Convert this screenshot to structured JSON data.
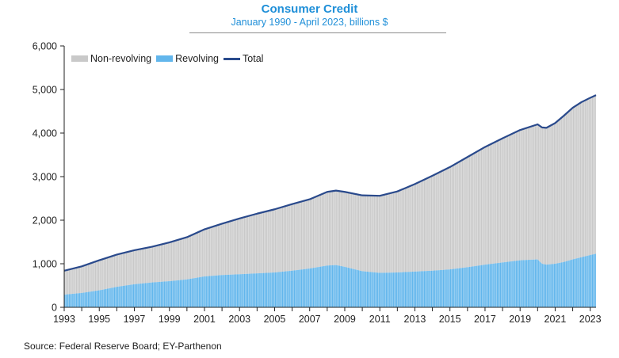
{
  "chart_data": {
    "type": "area",
    "title": "Consumer Credit",
    "subtitle": "January 1990 - April 2023, billions $",
    "xlabel": "",
    "ylabel": "",
    "source": "Source: Federal Reserve Board; EY-Parthenon",
    "xlim": [
      1993.0,
      2023.33
    ],
    "ylim": [
      0,
      6000
    ],
    "y_ticks": [
      "0",
      "1,000",
      "2,000",
      "3,000",
      "4,000",
      "5,000",
      "6,000"
    ],
    "x_ticks": [
      "1993",
      "1995",
      "1997",
      "1999",
      "2001",
      "2003",
      "2005",
      "2007",
      "2009",
      "2011",
      "2013",
      "2015",
      "2017",
      "2019",
      "2021",
      "2023"
    ],
    "grid": false,
    "legend_position": "top-left",
    "x": [
      1993.0,
      1994.0,
      1995.0,
      1996.0,
      1997.0,
      1998.0,
      1999.0,
      2000.0,
      2001.0,
      2002.0,
      2003.0,
      2004.0,
      2005.0,
      2006.0,
      2007.0,
      2008.0,
      2008.5,
      2009.0,
      2010.0,
      2011.0,
      2012.0,
      2013.0,
      2014.0,
      2015.0,
      2016.0,
      2017.0,
      2018.0,
      2019.0,
      2020.0,
      2020.25,
      2020.5,
      2021.0,
      2021.5,
      2022.0,
      2022.5,
      2023.0,
      2023.33
    ],
    "series": [
      {
        "name": "Non-revolving",
        "values": [
          550,
          610,
          690,
          740,
          780,
          820,
          890,
          970,
          1080,
          1180,
          1280,
          1370,
          1450,
          1530,
          1590,
          1690,
          1710,
          1720,
          1740,
          1770,
          1860,
          2010,
          2180,
          2350,
          2530,
          2700,
          2850,
          2990,
          3100,
          3130,
          3140,
          3230,
          3360,
          3480,
          3560,
          3610,
          3640
        ]
      },
      {
        "name": "Revolving",
        "values": [
          290,
          330,
          390,
          470,
          530,
          570,
          600,
          640,
          710,
          740,
          760,
          780,
          800,
          840,
          890,
          960,
          970,
          930,
          830,
          790,
          800,
          820,
          840,
          870,
          920,
          980,
          1030,
          1080,
          1100,
          1000,
          980,
          1000,
          1040,
          1100,
          1150,
          1200,
          1230
        ]
      },
      {
        "name": "Total",
        "values": [
          840,
          940,
          1080,
          1210,
          1310,
          1390,
          1490,
          1610,
          1790,
          1920,
          2040,
          2150,
          2250,
          2370,
          2480,
          2650,
          2680,
          2650,
          2570,
          2560,
          2660,
          2830,
          3020,
          3220,
          3450,
          3680,
          3880,
          4070,
          4200,
          4130,
          4120,
          4230,
          4400,
          4580,
          4710,
          4810,
          4870
        ]
      }
    ],
    "colors": {
      "non_revolving": "#c9c9c9",
      "revolving": "#62b6ec",
      "total": "#2a4a8c",
      "axis": "#222222"
    }
  }
}
